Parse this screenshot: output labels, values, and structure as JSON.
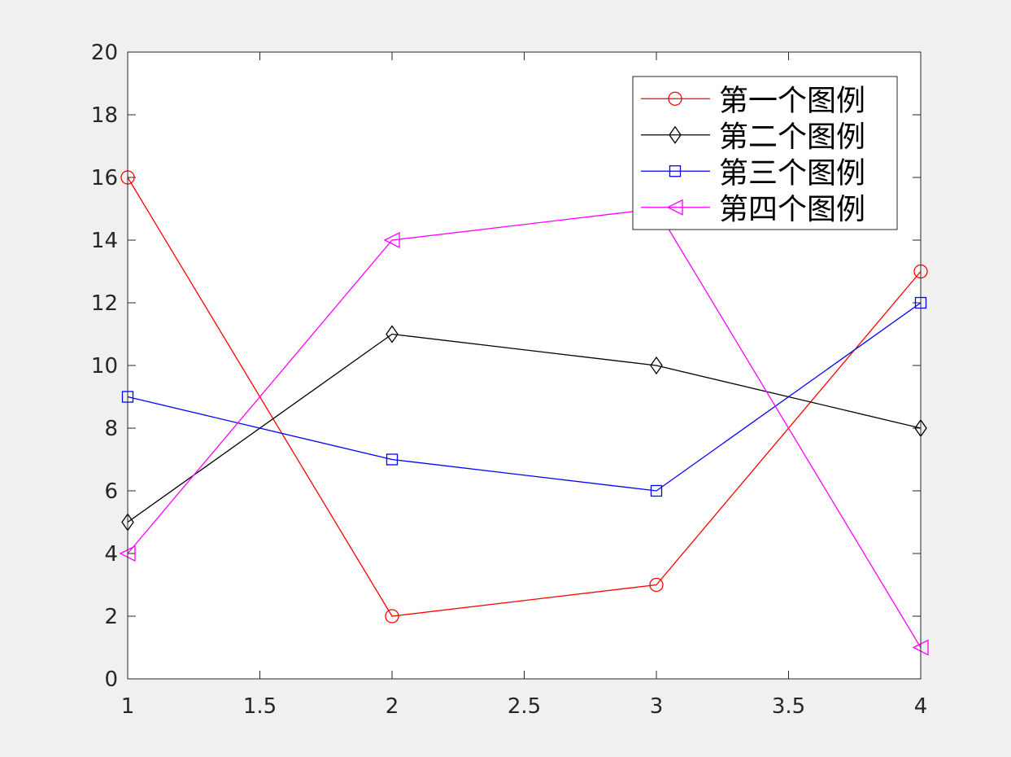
{
  "figure": {
    "background": "#f0f0f0"
  },
  "chart_data": {
    "type": "line",
    "x": [
      1,
      2,
      3,
      4
    ],
    "xlim": [
      1,
      4
    ],
    "ylim": [
      0,
      20
    ],
    "xticks": [
      1,
      1.5,
      2,
      2.5,
      3,
      3.5,
      4
    ],
    "yticks": [
      0,
      2,
      4,
      6,
      8,
      10,
      12,
      14,
      16,
      18,
      20
    ],
    "grid": false,
    "legend": {
      "position": "top-right"
    },
    "series": [
      {
        "name": "第一个图例",
        "values": [
          16,
          2,
          3,
          13
        ],
        "color": "#ff0000",
        "marker": "circle"
      },
      {
        "name": "第二个图例",
        "values": [
          5,
          11,
          10,
          8
        ],
        "color": "#000000",
        "marker": "diamond"
      },
      {
        "name": "第三个图例",
        "values": [
          9,
          7,
          6,
          12
        ],
        "color": "#0000ff",
        "marker": "square"
      },
      {
        "name": "第四个图例",
        "values": [
          4,
          14,
          15,
          1
        ],
        "color": "#ff00ff",
        "marker": "triangle-left"
      }
    ]
  }
}
